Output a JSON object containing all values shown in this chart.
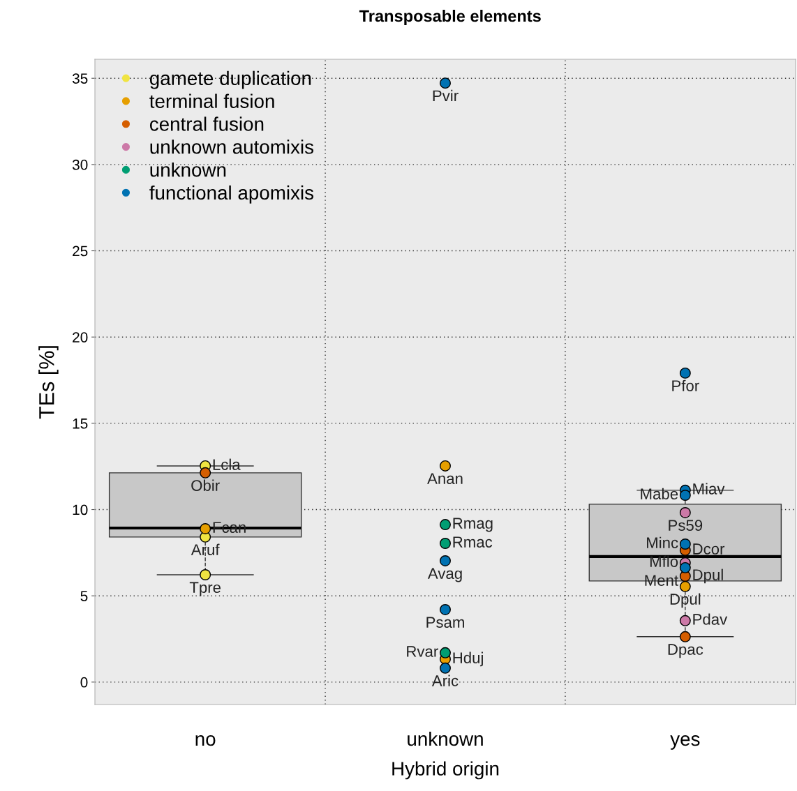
{
  "chart_data": {
    "type": "box",
    "title": "Transposable elements",
    "xlabel": "Hybrid origin",
    "ylabel": "TEs [%]",
    "categories": [
      "no",
      "unknown",
      "yes"
    ],
    "boxes": [
      {
        "low": 6.22,
        "q1": 8.41,
        "median": 8.93,
        "q3": 12.13,
        "high": 12.53
      },
      null,
      {
        "low": 2.63,
        "q1": 5.86,
        "median": 7.28,
        "q3": 10.31,
        "high": 11.12
      }
    ],
    "color": "#c8c8c8",
    "ylim": [
      -1.3,
      36.1
    ],
    "yticks": [
      0,
      5,
      10,
      15,
      20,
      25,
      30,
      35
    ],
    "grid": true,
    "legend": "top left",
    "marker": "circle",
    "series": [
      {
        "type": "scatter",
        "name": "gamete duplication",
        "color": "#f0e442",
        "x": [
          "no",
          "no",
          "no"
        ],
        "values": [
          12.53,
          8.41,
          6.22
        ]
      },
      {
        "type": "scatter",
        "name": "terminal fusion",
        "color": "#e69f00",
        "x": [
          "no",
          "unknown",
          "unknown",
          "yes"
        ],
        "values": [
          8.89,
          12.53,
          1.33,
          5.54
        ]
      },
      {
        "type": "scatter",
        "name": "central fusion",
        "color": "#d55e00",
        "x": [
          "no",
          "yes",
          "yes",
          "yes"
        ],
        "values": [
          12.13,
          7.64,
          6.14,
          2.63
        ]
      },
      {
        "type": "scatter",
        "name": "unknown automixis",
        "color": "#cc79a7",
        "x": [
          "yes",
          "yes",
          "yes"
        ],
        "values": [
          9.82,
          6.91,
          3.56
        ]
      },
      {
        "type": "scatter",
        "name": "unknown",
        "color": "#009e73",
        "x": [
          "unknown",
          "unknown",
          "unknown"
        ],
        "values": [
          9.13,
          8.04,
          1.7
        ]
      },
      {
        "type": "scatter",
        "name": "functional apomixis",
        "color": "#0072b2",
        "x": [
          "unknown",
          "unknown",
          "unknown",
          "unknown",
          "yes",
          "yes",
          "yes",
          "yes",
          "yes"
        ],
        "values": [
          34.72,
          7.03,
          4.2,
          0.81,
          17.91,
          11.12,
          10.83,
          8.0,
          6.63
        ]
      }
    ],
    "annotations": [
      {
        "text": "Lcla",
        "x": "no",
        "y": 12.53
      },
      {
        "text": "Aruf",
        "x": "no",
        "y": 8.41
      },
      {
        "text": "Tpre",
        "x": "no",
        "y": 6.22
      },
      {
        "text": "Fcan",
        "x": "no",
        "y": 8.89
      },
      {
        "text": "Anan",
        "x": "unknown",
        "y": 12.53
      },
      {
        "text": "Hduj",
        "x": "unknown",
        "y": 1.33
      },
      {
        "text": "Dpul",
        "x": "yes",
        "y": 5.54
      },
      {
        "text": "Obir",
        "x": "no",
        "y": 12.13
      },
      {
        "text": "Dcor",
        "x": "yes",
        "y": 7.64
      },
      {
        "text": "Dpul",
        "x": "yes",
        "y": 6.14
      },
      {
        "text": "Dpac",
        "x": "yes",
        "y": 2.63
      },
      {
        "text": "Ps59",
        "x": "yes",
        "y": 9.82
      },
      {
        "text": "Mflo",
        "x": "yes",
        "y": 6.91
      },
      {
        "text": "Pdav",
        "x": "yes",
        "y": 3.56
      },
      {
        "text": "Rmag",
        "x": "unknown",
        "y": 9.13
      },
      {
        "text": "Rmac",
        "x": "unknown",
        "y": 8.04
      },
      {
        "text": "Rvar",
        "x": "unknown",
        "y": 1.7
      },
      {
        "text": "Pvir",
        "x": "unknown",
        "y": 34.72
      },
      {
        "text": "Avag",
        "x": "unknown",
        "y": 7.03
      },
      {
        "text": "Psam",
        "x": "unknown",
        "y": 4.2
      },
      {
        "text": "Aric",
        "x": "unknown",
        "y": 0.81
      },
      {
        "text": "Pfor",
        "x": "yes",
        "y": 17.91
      },
      {
        "text": "Miav",
        "x": "yes",
        "y": 11.12
      },
      {
        "text": "Mabe",
        "x": "yes",
        "y": 10.83
      },
      {
        "text": "Minc",
        "x": "yes",
        "y": 8.0
      },
      {
        "text": "Ment",
        "x": "yes",
        "y": 6.63
      }
    ]
  }
}
